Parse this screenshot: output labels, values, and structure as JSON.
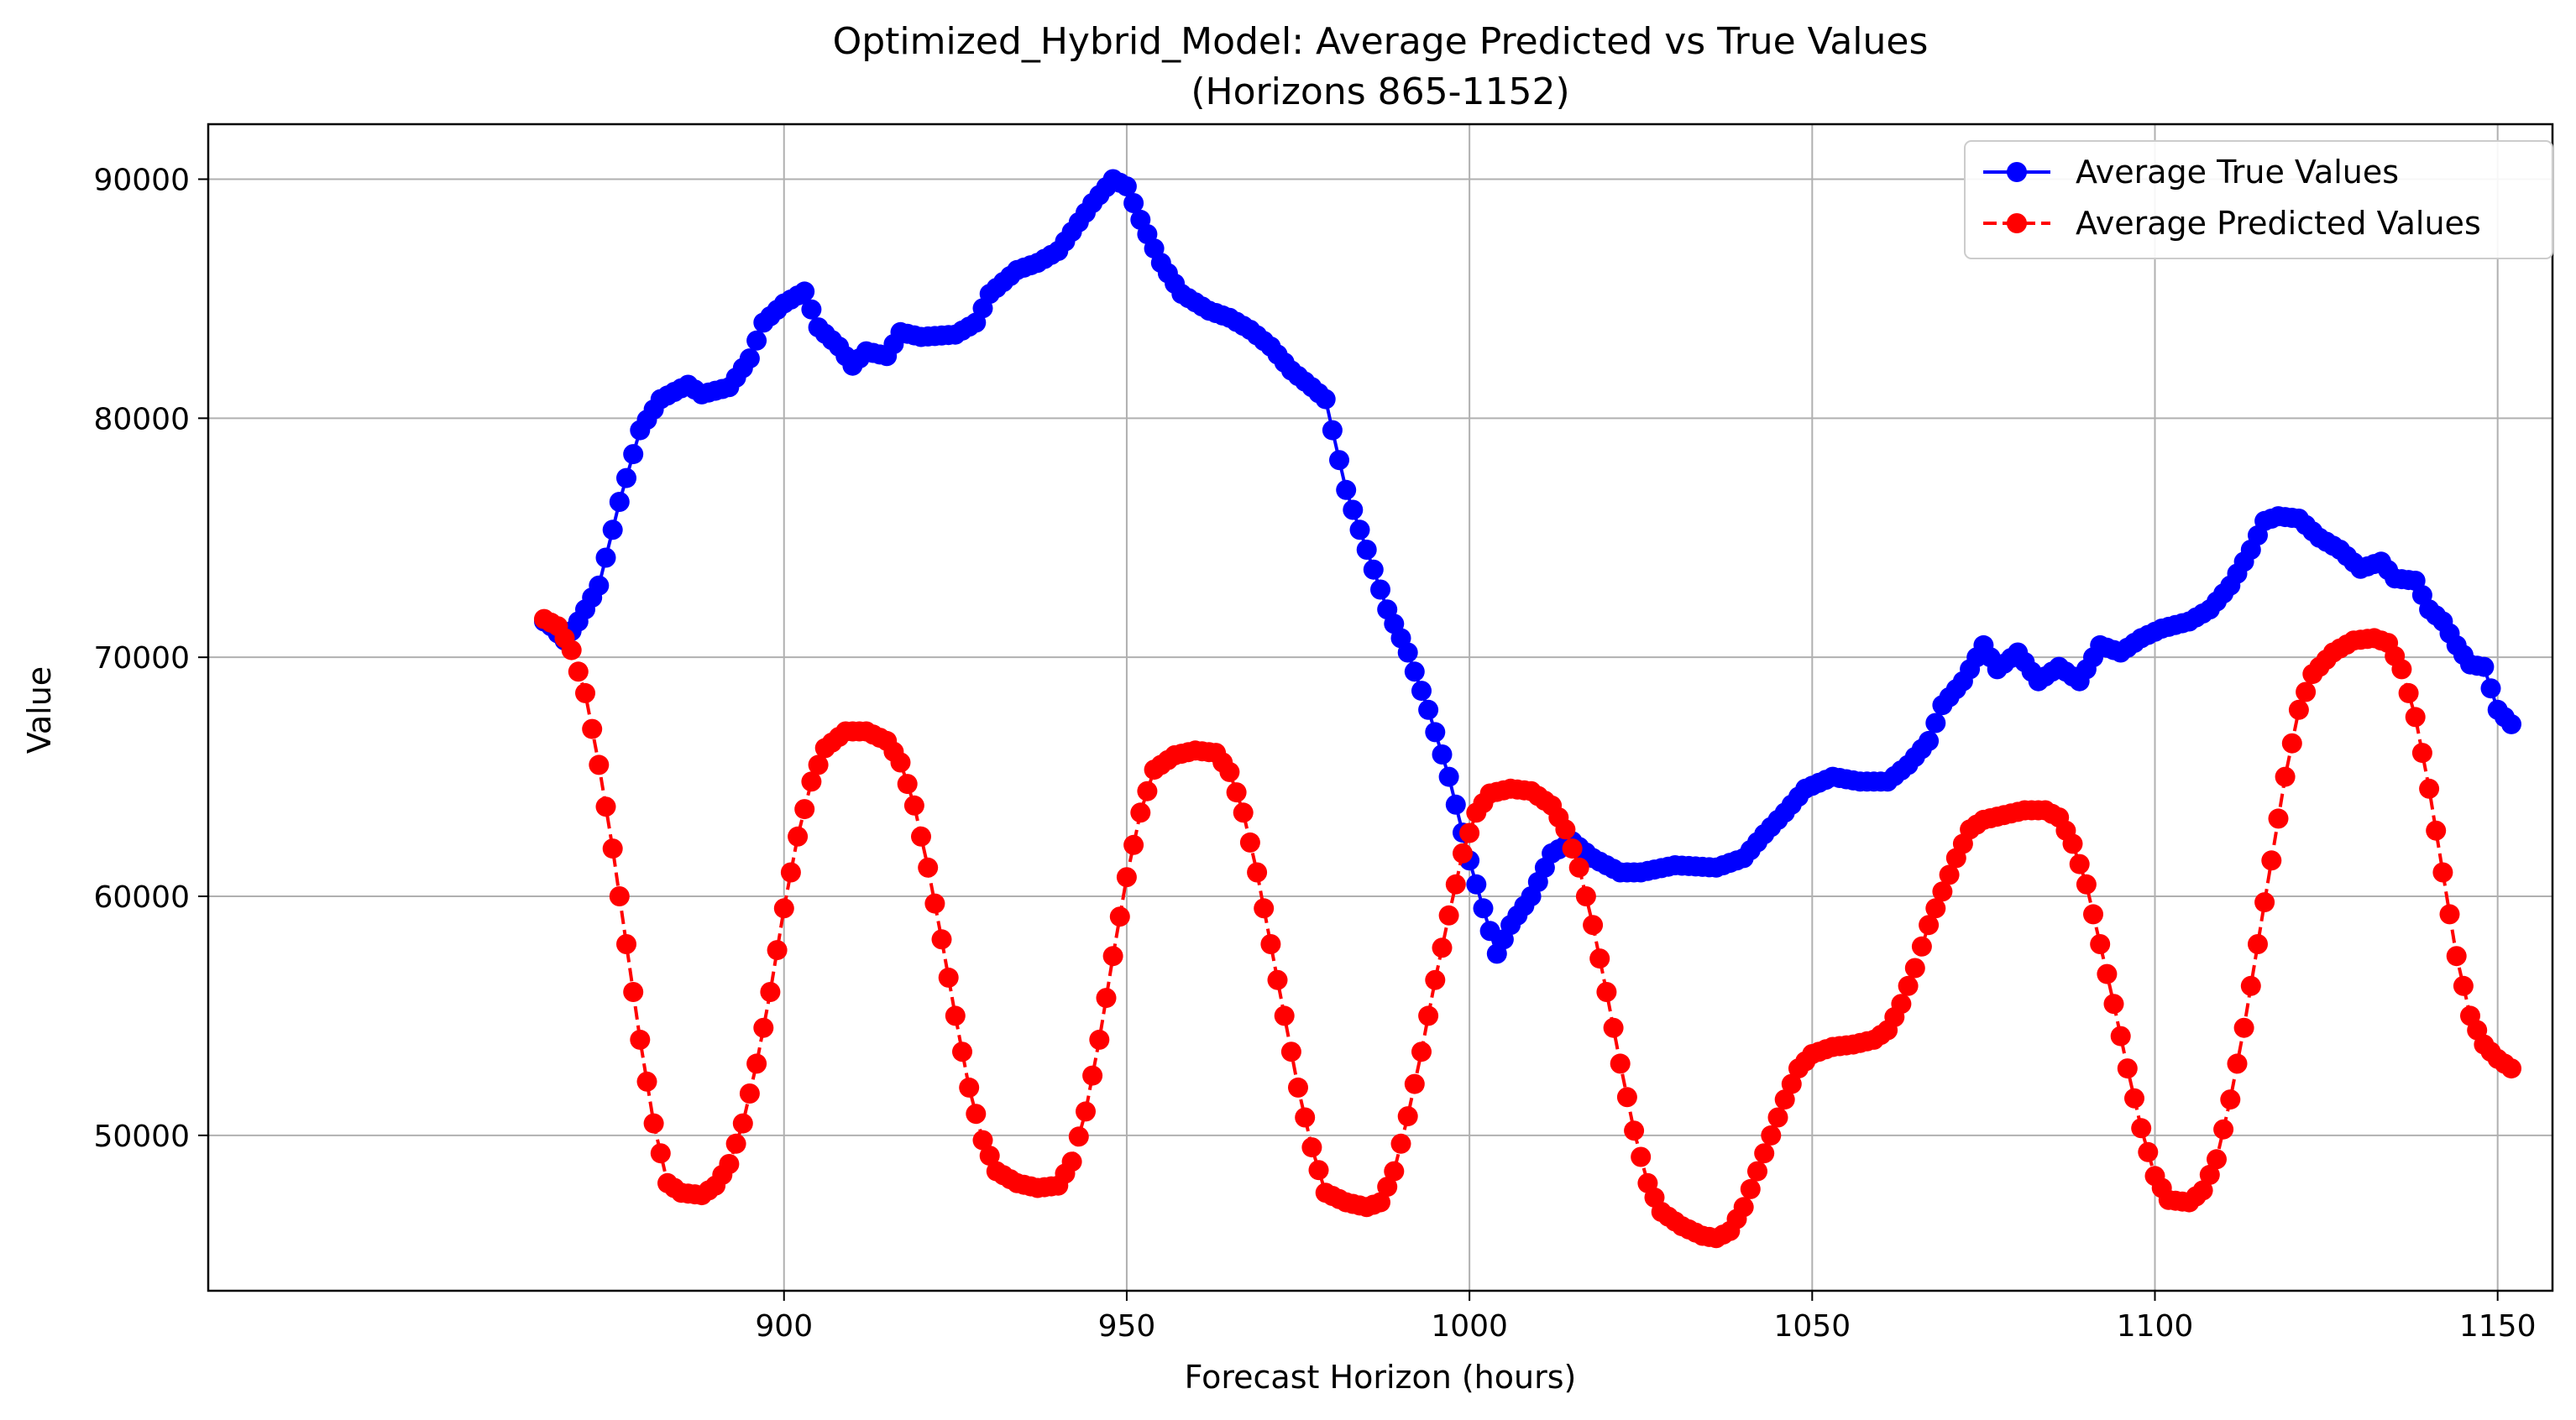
{
  "chart_data": {
    "type": "line",
    "title": "Optimized_Hybrid_Model: Average Predicted vs True Values",
    "subtitle": "(Horizons 865-1152)",
    "xlabel": "Forecast Horizon (hours)",
    "ylabel": "Value",
    "xlim": [
      816,
      1158
    ],
    "ylim": [
      43500,
      92300
    ],
    "xticks": [
      900,
      950,
      1000,
      1050,
      1100,
      1150
    ],
    "yticks": [
      50000,
      60000,
      70000,
      80000,
      90000
    ],
    "grid": true,
    "legend_position": "top-right",
    "series": [
      {
        "name": "Average True Values",
        "color": "#0000ff",
        "linestyle": "solid",
        "marker": "circle",
        "anchors": [
          [
            865,
            71500
          ],
          [
            866,
            71300
          ],
          [
            868,
            70700
          ],
          [
            870,
            71500
          ],
          [
            873,
            73000
          ],
          [
            876,
            76500
          ],
          [
            879,
            79500
          ],
          [
            882,
            80800
          ],
          [
            886,
            81400
          ],
          [
            888,
            81000
          ],
          [
            892,
            81300
          ],
          [
            895,
            82500
          ],
          [
            897,
            84000
          ],
          [
            900,
            84800
          ],
          [
            903,
            85300
          ],
          [
            905,
            83800
          ],
          [
            908,
            83000
          ],
          [
            910,
            82200
          ],
          [
            912,
            82800
          ],
          [
            915,
            82600
          ],
          [
            917,
            83600
          ],
          [
            920,
            83400
          ],
          [
            925,
            83500
          ],
          [
            928,
            84000
          ],
          [
            930,
            85200
          ],
          [
            934,
            86200
          ],
          [
            937,
            86500
          ],
          [
            940,
            87000
          ],
          [
            942,
            87800
          ],
          [
            945,
            89000
          ],
          [
            948,
            90000
          ],
          [
            950,
            89700
          ],
          [
            952,
            88300
          ],
          [
            955,
            86500
          ],
          [
            958,
            85200
          ],
          [
            962,
            84500
          ],
          [
            965,
            84200
          ],
          [
            968,
            83700
          ],
          [
            971,
            83000
          ],
          [
            974,
            82000
          ],
          [
            977,
            81300
          ],
          [
            979,
            80800
          ],
          [
            980,
            79500
          ],
          [
            982,
            77000
          ],
          [
            985,
            74500
          ],
          [
            988,
            72000
          ],
          [
            991,
            70200
          ],
          [
            994,
            67800
          ],
          [
            997,
            65000
          ],
          [
            1000,
            61500
          ],
          [
            1002,
            59500
          ],
          [
            1004,
            57600
          ],
          [
            1006,
            58800
          ],
          [
            1009,
            60000
          ],
          [
            1012,
            61800
          ],
          [
            1015,
            62300
          ],
          [
            1018,
            61600
          ],
          [
            1022,
            61000
          ],
          [
            1025,
            61000
          ],
          [
            1030,
            61300
          ],
          [
            1036,
            61200
          ],
          [
            1040,
            61600
          ],
          [
            1043,
            62600
          ],
          [
            1046,
            63500
          ],
          [
            1049,
            64500
          ],
          [
            1053,
            65000
          ],
          [
            1057,
            64800
          ],
          [
            1061,
            64800
          ],
          [
            1064,
            65500
          ],
          [
            1067,
            66500
          ],
          [
            1069,
            68000
          ],
          [
            1072,
            69000
          ],
          [
            1075,
            70500
          ],
          [
            1077,
            69500
          ],
          [
            1080,
            70200
          ],
          [
            1083,
            69000
          ],
          [
            1086,
            69600
          ],
          [
            1089,
            69000
          ],
          [
            1092,
            70500
          ],
          [
            1095,
            70200
          ],
          [
            1098,
            70800
          ],
          [
            1101,
            71200
          ],
          [
            1105,
            71500
          ],
          [
            1108,
            72000
          ],
          [
            1111,
            73000
          ],
          [
            1114,
            74500
          ],
          [
            1116,
            75700
          ],
          [
            1118,
            75900
          ],
          [
            1121,
            75800
          ],
          [
            1124,
            75000
          ],
          [
            1127,
            74500
          ],
          [
            1130,
            73700
          ],
          [
            1133,
            74000
          ],
          [
            1135,
            73300
          ],
          [
            1138,
            73200
          ],
          [
            1140,
            72000
          ],
          [
            1142,
            71500
          ],
          [
            1144,
            70500
          ],
          [
            1146,
            69700
          ],
          [
            1148,
            69600
          ],
          [
            1150,
            67800
          ],
          [
            1152,
            67200
          ]
        ]
      },
      {
        "name": "Average Predicted Values",
        "color": "#ff0000",
        "linestyle": "dashed",
        "marker": "circle",
        "anchors": [
          [
            865,
            71600
          ],
          [
            867,
            71300
          ],
          [
            869,
            70300
          ],
          [
            871,
            68500
          ],
          [
            873,
            65500
          ],
          [
            875,
            62000
          ],
          [
            877,
            58000
          ],
          [
            879,
            54000
          ],
          [
            881,
            50500
          ],
          [
            883,
            48000
          ],
          [
            885,
            47600
          ],
          [
            888,
            47500
          ],
          [
            890,
            47900
          ],
          [
            892,
            48800
          ],
          [
            894,
            50500
          ],
          [
            896,
            53000
          ],
          [
            898,
            56000
          ],
          [
            900,
            59500
          ],
          [
            902,
            62500
          ],
          [
            904,
            64800
          ],
          [
            906,
            66200
          ],
          [
            909,
            66900
          ],
          [
            912,
            66900
          ],
          [
            915,
            66500
          ],
          [
            917,
            65600
          ],
          [
            919,
            63800
          ],
          [
            921,
            61200
          ],
          [
            923,
            58200
          ],
          [
            925,
            55000
          ],
          [
            927,
            52000
          ],
          [
            929,
            49800
          ],
          [
            931,
            48500
          ],
          [
            934,
            48000
          ],
          [
            937,
            47800
          ],
          [
            940,
            47900
          ],
          [
            942,
            48900
          ],
          [
            944,
            51000
          ],
          [
            946,
            54000
          ],
          [
            948,
            57500
          ],
          [
            950,
            60800
          ],
          [
            952,
            63500
          ],
          [
            954,
            65300
          ],
          [
            957,
            65900
          ],
          [
            960,
            66100
          ],
          [
            963,
            66000
          ],
          [
            965,
            65200
          ],
          [
            967,
            63500
          ],
          [
            969,
            61000
          ],
          [
            971,
            58000
          ],
          [
            973,
            55000
          ],
          [
            975,
            52000
          ],
          [
            977,
            49500
          ],
          [
            979,
            47600
          ],
          [
            982,
            47200
          ],
          [
            985,
            47000
          ],
          [
            987,
            47200
          ],
          [
            989,
            48500
          ],
          [
            991,
            50800
          ],
          [
            993,
            53500
          ],
          [
            995,
            56500
          ],
          [
            997,
            59200
          ],
          [
            999,
            61800
          ],
          [
            1001,
            63500
          ],
          [
            1003,
            64300
          ],
          [
            1006,
            64500
          ],
          [
            1009,
            64400
          ],
          [
            1012,
            63800
          ],
          [
            1014,
            62800
          ],
          [
            1016,
            61200
          ],
          [
            1018,
            58800
          ],
          [
            1020,
            56000
          ],
          [
            1022,
            53000
          ],
          [
            1024,
            50200
          ],
          [
            1026,
            48000
          ],
          [
            1028,
            46800
          ],
          [
            1031,
            46200
          ],
          [
            1034,
            45800
          ],
          [
            1036,
            45700
          ],
          [
            1038,
            46000
          ],
          [
            1040,
            47000
          ],
          [
            1042,
            48500
          ],
          [
            1044,
            50000
          ],
          [
            1046,
            51500
          ],
          [
            1048,
            52800
          ],
          [
            1050,
            53400
          ],
          [
            1053,
            53700
          ],
          [
            1056,
            53800
          ],
          [
            1059,
            54000
          ],
          [
            1061,
            54400
          ],
          [
            1063,
            55500
          ],
          [
            1065,
            57000
          ],
          [
            1067,
            58800
          ],
          [
            1069,
            60200
          ],
          [
            1071,
            61600
          ],
          [
            1073,
            62800
          ],
          [
            1075,
            63200
          ],
          [
            1078,
            63400
          ],
          [
            1081,
            63600
          ],
          [
            1084,
            63600
          ],
          [
            1086,
            63300
          ],
          [
            1088,
            62200
          ],
          [
            1090,
            60500
          ],
          [
            1092,
            58000
          ],
          [
            1094,
            55500
          ],
          [
            1096,
            52800
          ],
          [
            1098,
            50300
          ],
          [
            1100,
            48300
          ],
          [
            1102,
            47300
          ],
          [
            1105,
            47200
          ],
          [
            1107,
            47700
          ],
          [
            1109,
            49000
          ],
          [
            1111,
            51500
          ],
          [
            1113,
            54500
          ],
          [
            1115,
            58000
          ],
          [
            1117,
            61500
          ],
          [
            1119,
            65000
          ],
          [
            1121,
            67800
          ],
          [
            1123,
            69300
          ],
          [
            1126,
            70200
          ],
          [
            1129,
            70700
          ],
          [
            1132,
            70800
          ],
          [
            1134,
            70600
          ],
          [
            1136,
            69500
          ],
          [
            1138,
            67500
          ],
          [
            1140,
            64500
          ],
          [
            1142,
            61000
          ],
          [
            1144,
            57500
          ],
          [
            1146,
            55000
          ],
          [
            1148,
            53800
          ],
          [
            1150,
            53200
          ],
          [
            1152,
            52800
          ]
        ]
      }
    ]
  }
}
